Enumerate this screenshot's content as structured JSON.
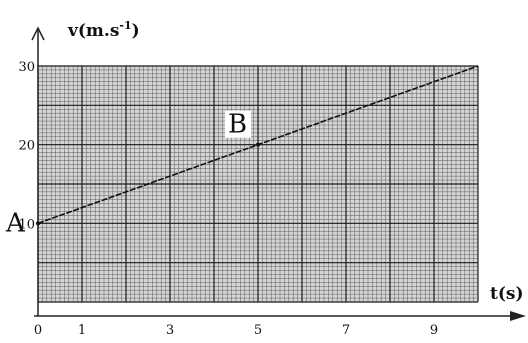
{
  "chart_data": {
    "type": "line",
    "title": "",
    "ylabel": "v(m.s",
    "ylabel_exp": "-1",
    "ylabel_close": ")",
    "xlabel": "t(s)",
    "xlim": [
      0,
      10
    ],
    "ylim": [
      0,
      30
    ],
    "x_tick_labels": [
      {
        "value": 0,
        "label": "0"
      },
      {
        "value": 1,
        "label": "1"
      },
      {
        "value": 3,
        "label": "3"
      },
      {
        "value": 5,
        "label": "5"
      },
      {
        "value": 7,
        "label": "7"
      },
      {
        "value": 9,
        "label": "9"
      }
    ],
    "y_tick_labels": [
      {
        "value": 10,
        "label": "10"
      },
      {
        "value": 20,
        "label": "20"
      },
      {
        "value": 30,
        "label": "30"
      }
    ],
    "grid": true,
    "series": [
      {
        "x": [
          0,
          10
        ],
        "y": [
          10,
          30
        ]
      }
    ],
    "points": [
      {
        "label": "A",
        "x": 0,
        "y": 10
      },
      {
        "label": "B",
        "x": 5,
        "y": 20
      }
    ]
  }
}
